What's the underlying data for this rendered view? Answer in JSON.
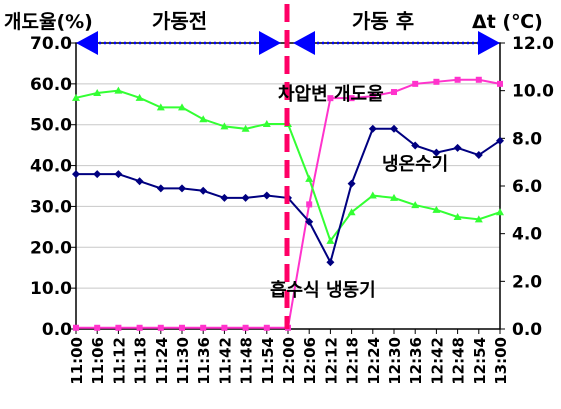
{
  "chart_data": {
    "type": "line",
    "y_left_label": "개도율(%)",
    "y_right_label": "Δt (℃)",
    "period_before": "가동전",
    "period_after": "가동 후",
    "categories": [
      "11:00",
      "11:06",
      "11:12",
      "11:18",
      "11:24",
      "11:30",
      "11:36",
      "11:42",
      "11:48",
      "11:54",
      "12:00",
      "12:06",
      "12:12",
      "12:18",
      "12:24",
      "12:30",
      "12:36",
      "12:42",
      "12:48",
      "12:54",
      "13:00"
    ],
    "y_left_ticks": [
      "0.0",
      "10.0",
      "20.0",
      "30.0",
      "40.0",
      "50.0",
      "60.0",
      "70.0"
    ],
    "y_right_ticks": [
      "0.0",
      "2.0",
      "4.0",
      "6.0",
      "8.0",
      "10.0",
      "12.0"
    ],
    "ylim_left": [
      0,
      70
    ],
    "ylim_right": [
      0,
      12
    ],
    "series": [
      {
        "name": "차압변 개도율",
        "axis": "left",
        "color": "#ff33cc",
        "marker": "square",
        "x": [
          0,
          1,
          2,
          3,
          4,
          5,
          6,
          7,
          8,
          9,
          10,
          11,
          12,
          13,
          14,
          15,
          16,
          17,
          18,
          19,
          20
        ],
        "values": [
          0.3,
          0.3,
          0.3,
          0.3,
          0.3,
          0.3,
          0.3,
          0.3,
          0.3,
          0.3,
          0.3,
          30.5,
          56.5,
          56.5,
          57,
          58,
          60,
          60.5,
          61,
          61,
          60
        ]
      },
      {
        "name": "냉온수기",
        "axis": "right",
        "color": "#33ff33",
        "marker": "triangle",
        "x": [
          0,
          1,
          2,
          3,
          4,
          5,
          6,
          7,
          8,
          9,
          10,
          11,
          12,
          13,
          14,
          15,
          16,
          17,
          18,
          19,
          20
        ],
        "values": [
          9.7,
          9.9,
          10.0,
          9.7,
          9.3,
          9.3,
          8.8,
          8.5,
          8.4,
          8.6,
          8.6,
          6.3,
          3.7,
          4.9,
          5.6,
          5.5,
          5.2,
          5.0,
          4.7,
          4.6,
          4.9
        ]
      },
      {
        "name": "흡수식 냉동기",
        "axis": "right",
        "color": "#000080",
        "marker": "diamond",
        "x": [
          0,
          1,
          2,
          3,
          4,
          5,
          6,
          7,
          8,
          9,
          10,
          11,
          12,
          13,
          14,
          15,
          16,
          17,
          18,
          19,
          20
        ],
        "values": [
          6.5,
          6.5,
          6.5,
          6.2,
          5.9,
          5.9,
          5.8,
          5.5,
          5.5,
          5.6,
          5.5,
          4.5,
          2.8,
          6.1,
          8.4,
          8.4,
          7.7,
          7.4,
          7.6,
          7.3,
          7.9
        ]
      }
    ],
    "annotations": [
      "차압변 개도율",
      "냉온수기",
      "흡수식 냉동기"
    ]
  }
}
